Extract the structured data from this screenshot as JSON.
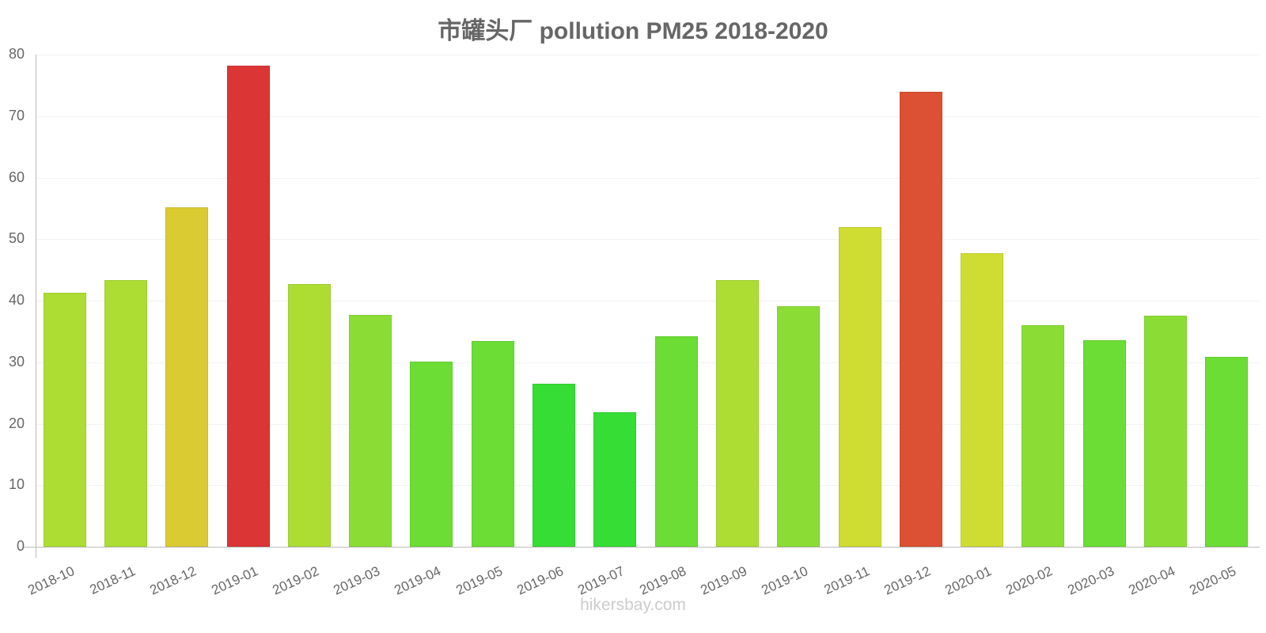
{
  "title": "市罐头厂 pollution PM25 2018-2020",
  "footer": "hikersbay.com",
  "y_ticks": [
    "0",
    "10",
    "20",
    "30",
    "40",
    "50",
    "60",
    "70",
    "80"
  ],
  "chart_data": {
    "type": "bar",
    "title": "市罐头厂 pollution PM25 2018-2020",
    "xlabel": "",
    "ylabel": "",
    "ylim": [
      0,
      80
    ],
    "grid": true,
    "legend": "none",
    "categories": [
      "2018-10",
      "2018-11",
      "2018-12",
      "2019-01",
      "2019-02",
      "2019-03",
      "2019-04",
      "2019-05",
      "2019-06",
      "2019-07",
      "2019-08",
      "2019-09",
      "2019-10",
      "2019-11",
      "2019-12",
      "2020-01",
      "2020-02",
      "2020-03",
      "2020-04",
      "2020-05"
    ],
    "values": [
      41.3,
      43.3,
      55.2,
      78.2,
      42.7,
      37.7,
      30.1,
      33.4,
      26.5,
      21.9,
      34.2,
      43.3,
      39.1,
      52.0,
      74.0,
      47.7,
      36.0,
      33.6,
      37.6,
      30.9
    ],
    "colors": [
      "#addd33",
      "#addd33",
      "#dbcb33",
      "#db3535",
      "#addd33",
      "#8bdd35",
      "#6bdd35",
      "#6bdd35",
      "#35dd35",
      "#35dd35",
      "#6bdd35",
      "#addd33",
      "#8bdd35",
      "#cfdd33",
      "#dc5033",
      "#cfdd33",
      "#8bdd35",
      "#6bdd35",
      "#8bdd35",
      "#6bdd35"
    ]
  }
}
